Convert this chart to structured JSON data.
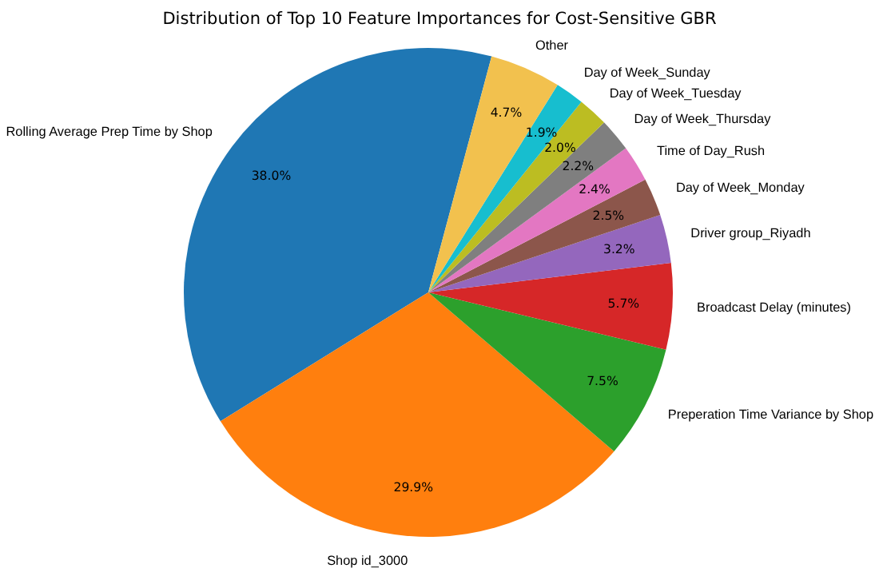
{
  "chart_data": {
    "type": "pie",
    "title": "Distribution of Top 10 Feature Importances for Cost-Sensitive GBR",
    "categories": [
      "Rolling Average Prep Time by Shop",
      "Shop id_3000",
      "Preperation Time Variance by Shop",
      "Broadcast Delay (minutes)",
      "Driver group_Riyadh",
      "Day of Week_Monday",
      "Time of Day_Rush",
      "Day of Week_Thursday",
      "Day of Week_Tuesday",
      "Day of Week_Sunday",
      "Other"
    ],
    "values": [
      38.0,
      29.9,
      7.5,
      5.7,
      3.2,
      2.5,
      2.4,
      2.2,
      2.0,
      1.9,
      4.7
    ],
    "colors": [
      "#1f77b4",
      "#ff7f0e",
      "#2ca02c",
      "#d62728",
      "#9467bd",
      "#8c564b",
      "#e377c2",
      "#7f7f7f",
      "#bcbd22",
      "#17becf",
      "#f2c14e"
    ],
    "value_labels": [
      "38.0%",
      "29.9%",
      "7.5%",
      "5.7%",
      "3.2%",
      "2.5%",
      "2.4%",
      "2.2%",
      "2.0%",
      "1.9%",
      "4.7%"
    ]
  }
}
